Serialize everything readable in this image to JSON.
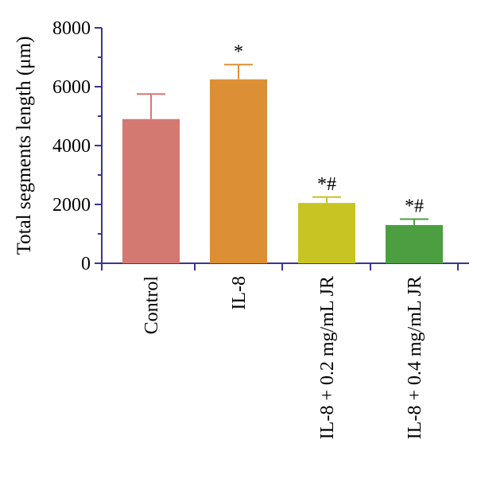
{
  "chart_data": {
    "type": "bar",
    "categories": [
      "Control",
      "IL-8",
      "IL-8 + 0.2 mg/mL JR",
      "IL-8 + 0.4 mg/mL JR"
    ],
    "values": [
      4900,
      6250,
      2050,
      1300
    ],
    "errors": [
      850,
      500,
      200,
      200
    ],
    "annotations": [
      "",
      "*",
      "*#",
      "*#"
    ],
    "colors": [
      "#d47872",
      "#dd8f35",
      "#c8c424",
      "#4c9e40"
    ],
    "axis_color": "#3a3590",
    "ylabel": "Total segments length (μm)",
    "ylim": [
      0,
      8000
    ],
    "yticks": [
      "0",
      "2000",
      "4000",
      "6000",
      "8000"
    ],
    "yticks_values": [
      0,
      2000,
      4000,
      6000,
      8000
    ]
  }
}
